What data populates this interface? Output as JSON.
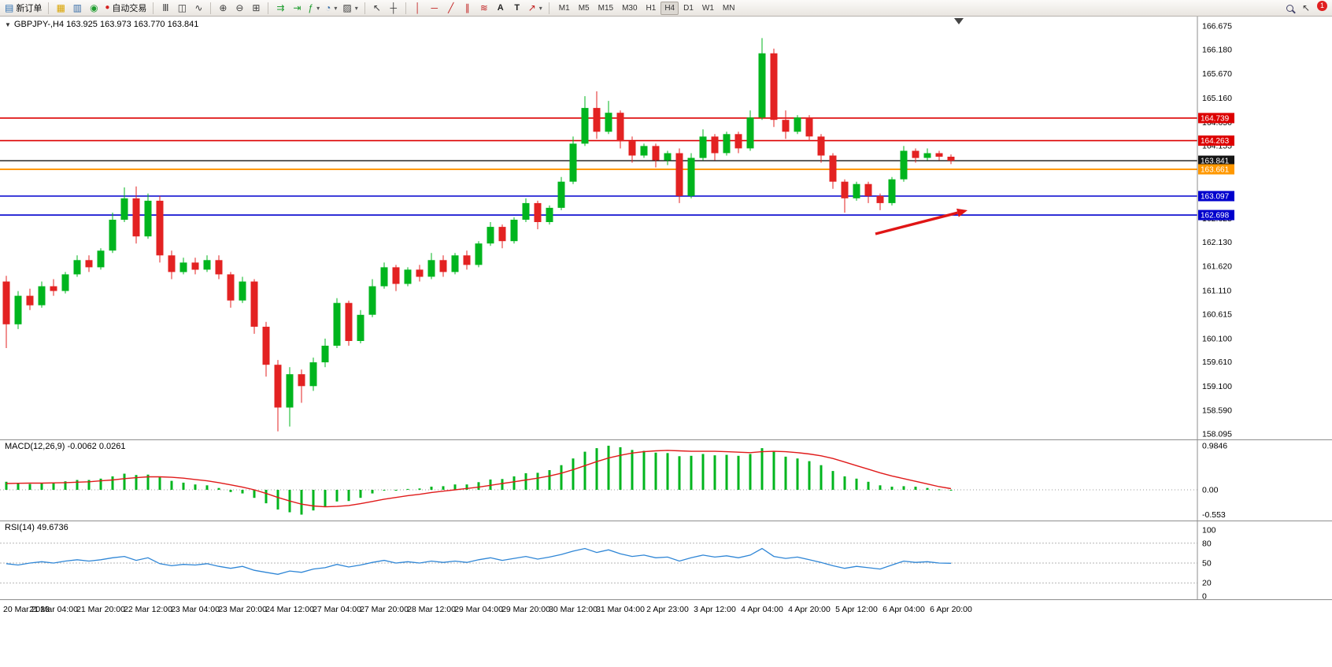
{
  "toolbar": {
    "new_order": "新订单",
    "autotrading": "自动交易",
    "timeframes": [
      "M1",
      "M5",
      "M15",
      "M30",
      "H1",
      "H4",
      "D1",
      "W1",
      "MN"
    ],
    "active_timeframe": "H4",
    "notification_badge": "1"
  },
  "icons": {
    "collapse": "▼",
    "new_order": "▤",
    "charts_group": "▦",
    "profiles": "▥",
    "market": "◉",
    "autotrading_status": "●",
    "bar_chart": "Ⅲ",
    "candlestick_chart": "◫",
    "line_chart": "∿",
    "zoom_in": "⊕",
    "zoom_out": "⊖",
    "tile_windows": "⊞",
    "auto_scroll": "⇉",
    "chart_shift": "⇥",
    "indicators": "ƒ",
    "periods": "◔",
    "templates": "▨",
    "cursor": "↖",
    "crosshair": "┼",
    "vertical_line": "│",
    "horizontal_line": "─",
    "trendline": "╱",
    "channel": "∥",
    "fibonacci": "≋",
    "text": "A",
    "text_label": "T",
    "arrow_objects": "↗",
    "dropdown": "▾",
    "pointer": "↖"
  },
  "chart": {
    "header": "GBPJPY-,H4  163.925 163.973 163.770 163.841",
    "symbol": "GBPJPY-",
    "period": "H4",
    "ohlc": {
      "open": "163.925",
      "high": "163.973",
      "low": "163.770",
      "close": "163.841"
    },
    "price_axis": [
      "166.675",
      "166.180",
      "165.670",
      "165.160",
      "164.650",
      "164.155",
      "163.645",
      "163.135",
      "162.625",
      "162.130",
      "161.620",
      "161.110",
      "160.615",
      "160.100",
      "159.610",
      "159.100",
      "158.590",
      "158.095"
    ],
    "levels": [
      {
        "price": 164.739,
        "label": "164.739",
        "color": "#dd0000",
        "width": 1.6
      },
      {
        "price": 164.263,
        "label": "164.263",
        "color": "#dd0000",
        "width": 1.6
      },
      {
        "price": 163.841,
        "label": "163.841",
        "color": "#151515",
        "width": 1.4
      },
      {
        "price": 163.661,
        "label": "163.661",
        "color": "#ff9800",
        "width": 2
      },
      {
        "price": 163.097,
        "label": "163.097",
        "color": "#0000cd",
        "width": 1.6
      },
      {
        "price": 162.698,
        "label": "162.698",
        "color": "#0000cd",
        "width": 1.6
      }
    ],
    "time_axis": [
      "20 Mar 2023",
      "21 Mar 04:00",
      "21 Mar 20:00",
      "22 Mar 12:00",
      "23 Mar 04:00",
      "23 Mar 20:00",
      "24 Mar 12:00",
      "27 Mar 04:00",
      "27 Mar 20:00",
      "28 Mar 12:00",
      "29 Mar 04:00",
      "29 Mar 20:00",
      "30 Mar 12:00",
      "31 Mar 04:00",
      "2 Apr 23:00",
      "3 Apr 12:00",
      "4 Apr 04:00",
      "4 Apr 20:00",
      "5 Apr 12:00",
      "6 Apr 04:00",
      "6 Apr 20:00"
    ]
  },
  "macd": {
    "label": "MACD(12,26,9) -0.0062 0.0261",
    "axis": [
      "0.9846",
      "0.00",
      "-0.553"
    ]
  },
  "rsi": {
    "label": "RSI(14) 49.6736",
    "axis": [
      "100",
      "80",
      "50",
      "20",
      "0"
    ],
    "levels": [
      80,
      50,
      20
    ]
  },
  "chart_data": {
    "type": "candlestick",
    "symbol": "GBPJPY-",
    "timeframe": "H4",
    "price_range": [
      158.095,
      166.675
    ],
    "levels": [
      164.739,
      164.263,
      163.841,
      163.661,
      163.097,
      162.698
    ],
    "colors": {
      "up": "#00b51e",
      "down": "#e32222",
      "macd_hist": "#00b51e",
      "macd_signal": "#e01a1a",
      "rsi_line": "#2f86d6"
    },
    "annotation_arrow": {
      "type": "arrow",
      "color": "#e01515",
      "from": [
        1112,
        297
      ],
      "to": [
        1229,
        267
      ]
    },
    "candles": [
      [
        161.3,
        161.42,
        159.9,
        160.4
      ],
      [
        160.4,
        161.1,
        160.3,
        161.0
      ],
      [
        161.0,
        161.15,
        160.7,
        160.8
      ],
      [
        160.8,
        161.3,
        160.75,
        161.2
      ],
      [
        161.2,
        161.35,
        161.0,
        161.1
      ],
      [
        161.1,
        161.5,
        161.05,
        161.45
      ],
      [
        161.45,
        161.85,
        161.4,
        161.75
      ],
      [
        161.75,
        161.85,
        161.5,
        161.6
      ],
      [
        161.6,
        162.0,
        161.55,
        161.95
      ],
      [
        161.95,
        162.75,
        161.9,
        162.6
      ],
      [
        162.6,
        163.28,
        162.55,
        163.05
      ],
      [
        163.05,
        163.3,
        162.1,
        162.25
      ],
      [
        162.25,
        163.15,
        162.2,
        163.0
      ],
      [
        163.0,
        163.1,
        161.7,
        161.85
      ],
      [
        161.85,
        161.95,
        161.35,
        161.5
      ],
      [
        161.5,
        161.8,
        161.45,
        161.7
      ],
      [
        161.7,
        161.8,
        161.45,
        161.55
      ],
      [
        161.55,
        161.85,
        161.5,
        161.75
      ],
      [
        161.75,
        161.85,
        161.35,
        161.45
      ],
      [
        161.45,
        161.5,
        160.75,
        160.9
      ],
      [
        160.9,
        161.4,
        160.85,
        161.3
      ],
      [
        161.3,
        161.35,
        160.2,
        160.35
      ],
      [
        160.35,
        160.45,
        159.3,
        159.55
      ],
      [
        159.55,
        159.65,
        158.15,
        158.65
      ],
      [
        158.65,
        159.5,
        158.25,
        159.35
      ],
      [
        159.35,
        159.45,
        158.75,
        159.1
      ],
      [
        159.1,
        159.7,
        159.0,
        159.6
      ],
      [
        159.6,
        160.1,
        159.5,
        159.95
      ],
      [
        159.95,
        160.95,
        159.9,
        160.85
      ],
      [
        160.85,
        160.9,
        159.95,
        160.05
      ],
      [
        160.05,
        160.7,
        160.0,
        160.6
      ],
      [
        160.6,
        161.35,
        160.55,
        161.2
      ],
      [
        161.2,
        161.7,
        161.15,
        161.6
      ],
      [
        161.6,
        161.65,
        161.1,
        161.25
      ],
      [
        161.25,
        161.6,
        161.2,
        161.55
      ],
      [
        161.55,
        161.65,
        161.3,
        161.4
      ],
      [
        161.4,
        161.9,
        161.35,
        161.75
      ],
      [
        161.75,
        161.85,
        161.4,
        161.5
      ],
      [
        161.5,
        161.9,
        161.45,
        161.85
      ],
      [
        161.85,
        161.95,
        161.55,
        161.65
      ],
      [
        161.65,
        162.15,
        161.6,
        162.1
      ],
      [
        162.1,
        162.55,
        162.05,
        162.45
      ],
      [
        162.45,
        162.5,
        162.0,
        162.15
      ],
      [
        162.15,
        162.65,
        162.1,
        162.6
      ],
      [
        162.6,
        163.05,
        162.55,
        162.95
      ],
      [
        162.95,
        163.0,
        162.4,
        162.55
      ],
      [
        162.55,
        162.9,
        162.5,
        162.85
      ],
      [
        162.85,
        163.5,
        162.8,
        163.4
      ],
      [
        163.4,
        164.35,
        163.35,
        164.2
      ],
      [
        164.2,
        165.2,
        164.15,
        164.95
      ],
      [
        164.95,
        165.3,
        164.3,
        164.45
      ],
      [
        164.45,
        165.1,
        164.4,
        164.85
      ],
      [
        164.85,
        164.9,
        164.1,
        164.25
      ],
      [
        164.25,
        164.35,
        163.8,
        163.95
      ],
      [
        163.95,
        164.2,
        163.9,
        164.15
      ],
      [
        164.15,
        164.2,
        163.7,
        163.85
      ],
      [
        163.85,
        164.05,
        163.75,
        164.0
      ],
      [
        164.0,
        164.1,
        162.95,
        163.1
      ],
      [
        163.1,
        164.0,
        163.05,
        163.9
      ],
      [
        163.9,
        164.5,
        163.85,
        164.35
      ],
      [
        164.35,
        164.4,
        163.85,
        164.0
      ],
      [
        164.0,
        164.45,
        163.95,
        164.4
      ],
      [
        164.4,
        164.45,
        164.0,
        164.1
      ],
      [
        164.1,
        164.9,
        164.05,
        164.75
      ],
      [
        164.75,
        166.42,
        164.7,
        166.1
      ],
      [
        166.1,
        166.2,
        164.55,
        164.7
      ],
      [
        164.7,
        164.9,
        164.3,
        164.45
      ],
      [
        164.45,
        164.8,
        164.4,
        164.75
      ],
      [
        164.75,
        164.8,
        164.25,
        164.35
      ],
      [
        164.35,
        164.4,
        163.8,
        163.95
      ],
      [
        163.95,
        164.0,
        163.25,
        163.4
      ],
      [
        163.4,
        163.45,
        162.75,
        163.05
      ],
      [
        163.05,
        163.4,
        163.0,
        163.35
      ],
      [
        163.35,
        163.4,
        162.95,
        163.1
      ],
      [
        163.1,
        163.15,
        162.8,
        162.95
      ],
      [
        162.95,
        163.5,
        162.9,
        163.45
      ],
      [
        163.45,
        164.15,
        163.4,
        164.05
      ],
      [
        164.05,
        164.1,
        163.8,
        163.9
      ],
      [
        163.9,
        164.1,
        163.85,
        164.0
      ],
      [
        164.0,
        164.05,
        163.85,
        163.925
      ],
      [
        163.925,
        163.973,
        163.77,
        163.841
      ]
    ],
    "macd_hist": [
      0.18,
      0.15,
      0.13,
      0.14,
      0.16,
      0.19,
      0.22,
      0.22,
      0.25,
      0.3,
      0.36,
      0.33,
      0.34,
      0.28,
      0.2,
      0.16,
      0.12,
      0.1,
      0.04,
      -0.05,
      -0.08,
      -0.18,
      -0.3,
      -0.44,
      -0.5,
      -0.553,
      -0.46,
      -0.38,
      -0.26,
      -0.25,
      -0.18,
      -0.08,
      0.0,
      -0.02,
      0.02,
      0.03,
      0.07,
      0.08,
      0.12,
      0.12,
      0.17,
      0.23,
      0.24,
      0.3,
      0.37,
      0.38,
      0.44,
      0.55,
      0.7,
      0.85,
      0.93,
      0.9846,
      0.95,
      0.89,
      0.87,
      0.83,
      0.82,
      0.75,
      0.76,
      0.8,
      0.77,
      0.78,
      0.76,
      0.8,
      0.93,
      0.85,
      0.74,
      0.7,
      0.64,
      0.55,
      0.42,
      0.3,
      0.25,
      0.18,
      0.1,
      0.07,
      0.08,
      0.07,
      0.04,
      0.01,
      -0.0062
    ],
    "macd_signal": [
      0.14,
      0.145,
      0.15,
      0.15,
      0.155,
      0.16,
      0.17,
      0.18,
      0.2,
      0.22,
      0.25,
      0.27,
      0.29,
      0.29,
      0.28,
      0.26,
      0.23,
      0.2,
      0.16,
      0.11,
      0.06,
      0.0,
      -0.08,
      -0.17,
      -0.25,
      -0.32,
      -0.36,
      -0.38,
      -0.37,
      -0.35,
      -0.31,
      -0.26,
      -0.21,
      -0.17,
      -0.13,
      -0.1,
      -0.06,
      -0.03,
      0.0,
      0.03,
      0.06,
      0.1,
      0.14,
      0.18,
      0.22,
      0.26,
      0.31,
      0.37,
      0.45,
      0.54,
      0.63,
      0.71,
      0.77,
      0.82,
      0.85,
      0.87,
      0.88,
      0.87,
      0.86,
      0.86,
      0.86,
      0.85,
      0.84,
      0.83,
      0.85,
      0.86,
      0.85,
      0.83,
      0.8,
      0.76,
      0.7,
      0.62,
      0.54,
      0.46,
      0.38,
      0.31,
      0.25,
      0.19,
      0.13,
      0.07,
      0.0261
    ],
    "rsi": [
      49,
      47,
      50,
      52,
      50,
      53,
      55,
      53,
      55,
      58,
      60,
      54,
      58,
      49,
      46,
      48,
      47,
      49,
      45,
      42,
      45,
      39,
      36,
      33,
      38,
      36,
      41,
      43,
      48,
      44,
      47,
      51,
      54,
      50,
      52,
      50,
      53,
      51,
      53,
      51,
      55,
      58,
      54,
      57,
      60,
      56,
      59,
      63,
      68,
      72,
      66,
      70,
      64,
      60,
      62,
      58,
      59,
      53,
      58,
      62,
      59,
      61,
      58,
      62,
      72,
      60,
      57,
      59,
      55,
      51,
      46,
      42,
      45,
      43,
      41,
      47,
      53,
      51,
      52,
      50,
      49.67
    ]
  }
}
